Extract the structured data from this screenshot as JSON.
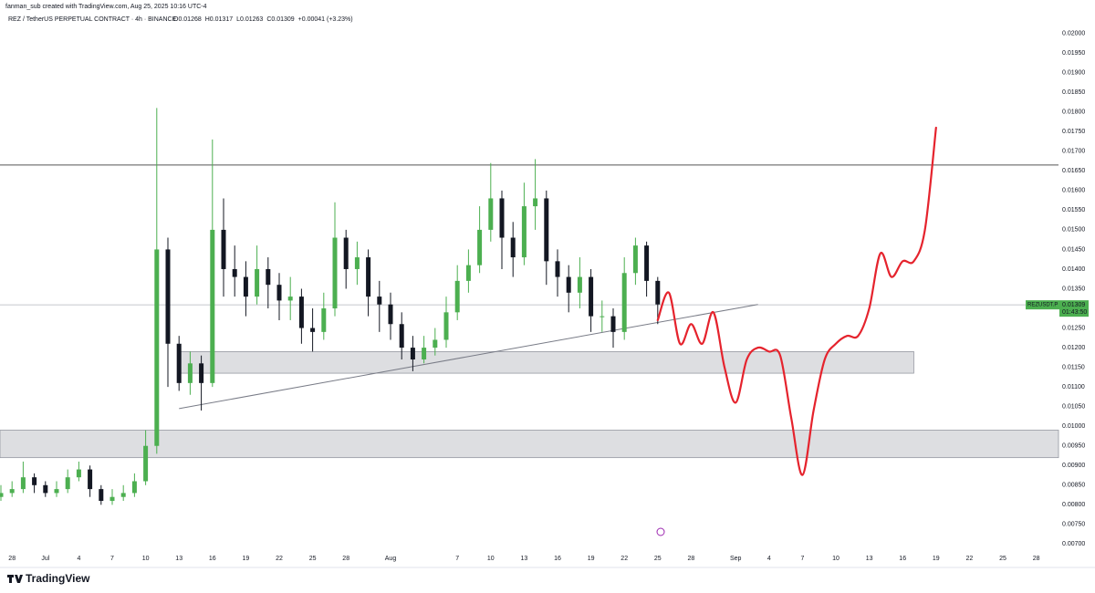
{
  "chart_data": {
    "type": "candlestick",
    "attribution": "fanman_sub created with TradingView.com, Aug 25, 2025 10:16 UTC-4",
    "title": "REZ / TetherUS PERPETUAL CONTRACT · 4h · BINANCE",
    "ohlc_text": [
      "O0.01268",
      "H0.01317",
      "L0.01263",
      "C0.01309",
      "+0.00041 (+3.23%)"
    ],
    "brand": "TradingView",
    "categories": [
      null,
      "28",
      null,
      null,
      "Jul",
      null,
      null,
      "4",
      null,
      null,
      "7",
      null,
      null,
      "10",
      null,
      null,
      "13",
      null,
      null,
      "16",
      null,
      null,
      "19",
      null,
      null,
      "22",
      null,
      null,
      "25",
      null,
      null,
      "28",
      null,
      null,
      null,
      "Aug",
      null,
      null,
      null,
      null,
      null,
      "7",
      null,
      null,
      "10",
      null,
      null,
      "13",
      null,
      null,
      "16",
      null,
      null,
      "19",
      null,
      null,
      "22",
      null,
      null,
      "25",
      null,
      null,
      "28",
      null,
      null,
      null,
      "Sep",
      null,
      null,
      "4",
      null,
      null,
      "7",
      null,
      null,
      "10",
      null,
      null,
      "13",
      null,
      null,
      "16",
      null,
      null,
      "19",
      null,
      null,
      "22",
      null,
      null,
      "25",
      null,
      null,
      "28",
      null,
      null
    ],
    "open": [
      0.0082,
      0.0083,
      0.0084,
      0.0087,
      0.0085,
      0.0083,
      0.0084,
      0.0087,
      0.0089,
      0.0084,
      0.0081,
      0.0082,
      0.0083,
      0.0086,
      0.0095,
      0.0145,
      0.0121,
      0.0111,
      0.0116,
      0.0111,
      0.015,
      0.014,
      0.0138,
      0.0133,
      0.014,
      0.0136,
      0.0132,
      0.0133,
      0.0125,
      0.0124,
      0.013,
      0.0148,
      0.014,
      0.0143,
      0.0133,
      0.0131,
      0.0126,
      0.012,
      0.0117,
      0.012,
      0.0122,
      0.0129,
      0.0137,
      0.0141,
      0.015,
      0.0158,
      0.0148,
      0.0143,
      0.0156,
      0.0158,
      0.0142,
      0.0138,
      0.0134,
      0.0138,
      0.0128,
      0.0128,
      0.0124,
      0.0139,
      0.0146,
      0.0137,
      null,
      null,
      null,
      null,
      null,
      null,
      null,
      null,
      null,
      null,
      null,
      null,
      null,
      null,
      null,
      null,
      null,
      null,
      null,
      null,
      null,
      null,
      null,
      null,
      null,
      null,
      null,
      null,
      null,
      null,
      null,
      null,
      null,
      null,
      null,
      null
    ],
    "high": [
      0.0085,
      0.0086,
      0.0091,
      0.0088,
      0.0086,
      0.0086,
      0.0089,
      0.0091,
      0.009,
      0.0085,
      0.0084,
      0.0085,
      0.0088,
      0.0099,
      0.0181,
      0.0148,
      0.0123,
      0.0119,
      0.0118,
      0.0173,
      0.0158,
      0.0146,
      0.0142,
      0.0146,
      0.0143,
      0.0139,
      0.0138,
      0.0135,
      0.013,
      0.0134,
      0.0157,
      0.015,
      0.0147,
      0.0145,
      0.0137,
      0.0134,
      0.0129,
      0.0123,
      0.0123,
      0.0125,
      0.0133,
      0.0141,
      0.0145,
      0.0156,
      0.0167,
      0.016,
      0.0152,
      0.0162,
      0.0168,
      0.016,
      0.0145,
      0.0141,
      0.0143,
      0.014,
      0.0132,
      0.013,
      0.0143,
      0.0148,
      0.0147,
      0.0138,
      null,
      null,
      null,
      null,
      null,
      null,
      null,
      null,
      null,
      null,
      null,
      null,
      null,
      null,
      null,
      null,
      null,
      null,
      null,
      null,
      null,
      null,
      null,
      null,
      null,
      null,
      null,
      null,
      null,
      null,
      null,
      null,
      null,
      null,
      null,
      null
    ],
    "low": [
      0.0081,
      0.0082,
      0.0083,
      0.0083,
      0.0082,
      0.0082,
      0.0083,
      0.0086,
      0.0082,
      0.008,
      0.008,
      0.0081,
      0.0082,
      0.0085,
      0.0093,
      0.011,
      0.0109,
      0.0108,
      0.0104,
      0.011,
      0.0133,
      0.0133,
      0.0128,
      0.0131,
      0.013,
      0.0127,
      0.0127,
      0.0121,
      0.0119,
      0.0122,
      0.0128,
      0.0135,
      0.0136,
      0.0128,
      0.0124,
      0.0122,
      0.0117,
      0.0114,
      0.0116,
      0.0118,
      0.012,
      0.0127,
      0.0134,
      0.0139,
      0.0147,
      0.014,
      0.0138,
      0.0141,
      0.015,
      0.0136,
      0.0133,
      0.0129,
      0.013,
      0.0124,
      0.0124,
      0.012,
      0.0122,
      0.0136,
      0.0133,
      0.0126,
      null,
      null,
      null,
      null,
      null,
      null,
      null,
      null,
      null,
      null,
      null,
      null,
      null,
      null,
      null,
      null,
      null,
      null,
      null,
      null,
      null,
      null,
      null,
      null,
      null,
      null,
      null,
      null,
      null,
      null,
      null,
      null,
      null,
      null,
      null,
      null
    ],
    "close": [
      0.0083,
      0.0084,
      0.0087,
      0.0085,
      0.0083,
      0.0084,
      0.0087,
      0.0089,
      0.0084,
      0.0081,
      0.0082,
      0.0083,
      0.0086,
      0.0095,
      0.0145,
      0.0121,
      0.0111,
      0.0116,
      0.0111,
      0.015,
      0.014,
      0.0138,
      0.0133,
      0.014,
      0.0136,
      0.0132,
      0.0133,
      0.0125,
      0.0124,
      0.013,
      0.0148,
      0.014,
      0.0143,
      0.0133,
      0.0131,
      0.0126,
      0.012,
      0.0117,
      0.012,
      0.0122,
      0.0129,
      0.0137,
      0.0141,
      0.015,
      0.0158,
      0.0148,
      0.0143,
      0.0156,
      0.0158,
      0.0142,
      0.0138,
      0.0134,
      0.0138,
      0.0128,
      0.0128,
      0.0124,
      0.0139,
      0.0146,
      0.0137,
      0.0131,
      null,
      null,
      null,
      null,
      null,
      null,
      null,
      null,
      null,
      null,
      null,
      null,
      null,
      null,
      null,
      null,
      null,
      null,
      null,
      null,
      null,
      null,
      null,
      null,
      null,
      null,
      null,
      null,
      null,
      null,
      null,
      null,
      null,
      null,
      null,
      null
    ],
    "up_color": "#4caf50",
    "down_color": "#131722",
    "forecast": {
      "color": "#e5232d",
      "values": [
        null,
        null,
        null,
        null,
        null,
        null,
        null,
        null,
        null,
        null,
        null,
        null,
        null,
        null,
        null,
        null,
        null,
        null,
        null,
        null,
        null,
        null,
        null,
        null,
        null,
        null,
        null,
        null,
        null,
        null,
        null,
        null,
        null,
        null,
        null,
        null,
        null,
        null,
        null,
        null,
        null,
        null,
        null,
        null,
        null,
        null,
        null,
        null,
        null,
        null,
        null,
        null,
        null,
        null,
        null,
        null,
        null,
        null,
        null,
        0.0127,
        0.0134,
        0.0121,
        0.0126,
        0.0121,
        0.0129,
        0.0115,
        0.0106,
        0.0117,
        0.012,
        0.0119,
        0.0118,
        0.0102,
        0.00876,
        0.0104,
        0.0117,
        0.0121,
        0.0123,
        0.0123,
        0.013,
        0.0144,
        0.0138,
        0.0142,
        0.0142,
        0.015,
        0.0176,
        null,
        null,
        null,
        null,
        null,
        null,
        null,
        null,
        null,
        null,
        null
      ]
    },
    "hline": 0.01665,
    "trendline": {
      "x": [
        16,
        68
      ],
      "values": [
        0.01045,
        0.0131
      ]
    },
    "zones": [
      {
        "x": [
          16,
          82
        ],
        "values": [
          0.01135,
          0.0119
        ]
      },
      {
        "values": [
          0.0092,
          0.0099
        ]
      }
    ],
    "last_price": {
      "symbol": "REZUSDT.P",
      "value": 0.01309,
      "countdown": "01:43:50"
    },
    "ylim": [
      0.0068,
      0.02085
    ],
    "yticks": [
      {
        "value": 0.007,
        "label": "0.00700"
      },
      {
        "value": 0.0075,
        "label": "0.00750"
      },
      {
        "value": 0.008,
        "label": "0.00800"
      },
      {
        "value": 0.0085,
        "label": "0.00850"
      },
      {
        "value": 0.009,
        "label": "0.00900"
      },
      {
        "value": 0.0095,
        "label": "0.00950"
      },
      {
        "value": 0.01,
        "label": "0.01000"
      },
      {
        "value": 0.0105,
        "label": "0.01050"
      },
      {
        "value": 0.011,
        "label": "0.01100"
      },
      {
        "value": 0.0115,
        "label": "0.01150"
      },
      {
        "value": 0.012,
        "label": "0.01200"
      },
      {
        "value": 0.0125,
        "label": "0.01250"
      },
      {
        "value": 0.013,
        "label": "0.01300"
      },
      {
        "value": 0.0135,
        "label": "0.01350"
      },
      {
        "value": 0.014,
        "label": "0.01400"
      },
      {
        "value": 0.0145,
        "label": "0.01450"
      },
      {
        "value": 0.015,
        "label": "0.01500"
      },
      {
        "value": 0.0155,
        "label": "0.01550"
      },
      {
        "value": 0.016,
        "label": "0.01600"
      },
      {
        "value": 0.0165,
        "label": "0.01650"
      },
      {
        "value": 0.017,
        "label": "0.01700"
      },
      {
        "value": 0.0175,
        "label": "0.01750"
      },
      {
        "value": 0.018,
        "label": "0.01800"
      },
      {
        "value": 0.0185,
        "label": "0.01850"
      },
      {
        "value": 0.019,
        "label": "0.01900"
      },
      {
        "value": 0.0195,
        "label": "0.01950"
      },
      {
        "value": 0.02,
        "label": "0.02000"
      }
    ]
  }
}
